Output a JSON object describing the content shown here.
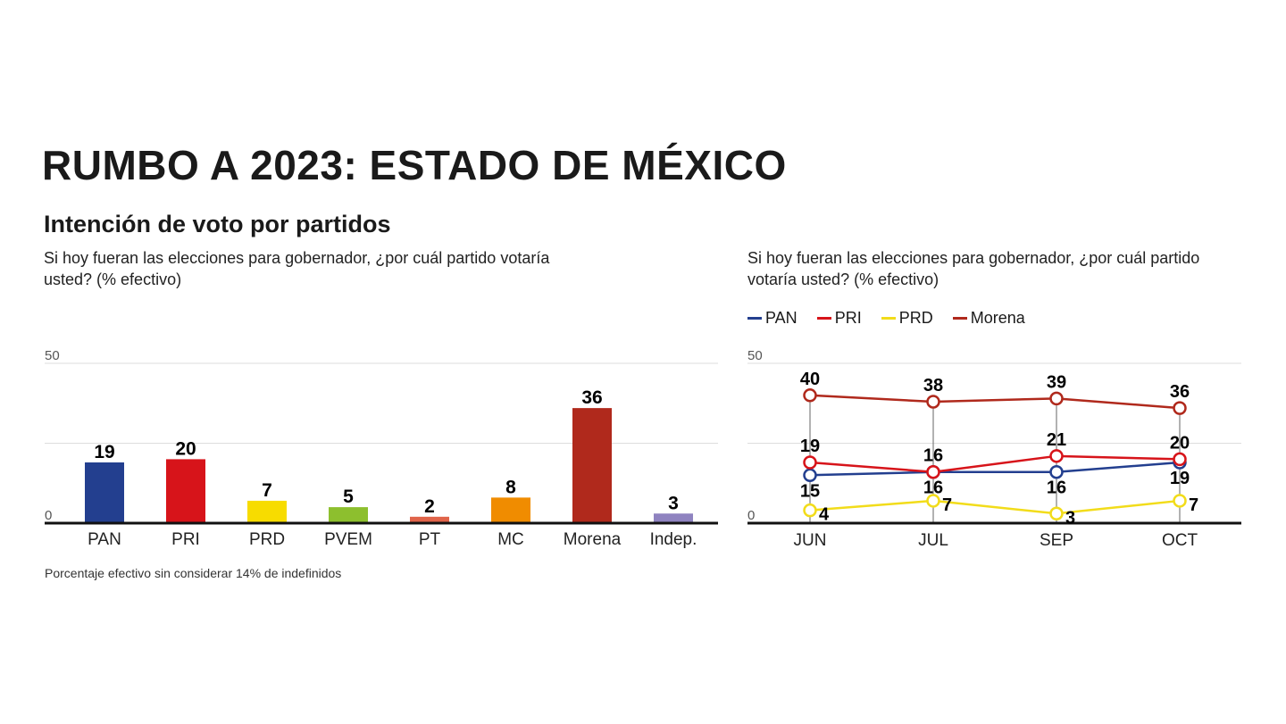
{
  "title": "RUMBO A 2023: ESTADO DE MÉXICO",
  "subtitle": "Intención de voto por partidos",
  "note": "Porcentaje efectivo sin considerar 14% de indefinidos",
  "chart_data": [
    {
      "type": "bar",
      "question": "Si hoy fueran las elecciones para gobernador, ¿por cuál partido votaría usted? (% efectivo)",
      "categories": [
        "PAN",
        "PRI",
        "PRD",
        "PVEM",
        "PT",
        "MC",
        "Morena",
        "Indep."
      ],
      "values": [
        19,
        20,
        7,
        5,
        2,
        8,
        36,
        3
      ],
      "colors": [
        "#233f8f",
        "#d7141a",
        "#f7dc00",
        "#8dbf2e",
        "#e0644a",
        "#f08c00",
        "#b0291c",
        "#8f83c0"
      ],
      "ylim": [
        0,
        50
      ],
      "yticks": [
        "0",
        "50"
      ],
      "grid": true
    },
    {
      "type": "line",
      "question": "Si hoy fueran las elecciones para gobernador, ¿por cuál partido votaría usted? (% efectivo)",
      "categories": [
        "JUN",
        "JUL",
        "SEP",
        "OCT"
      ],
      "ylim": [
        0,
        50
      ],
      "yticks": [
        "0",
        "50"
      ],
      "grid": true,
      "legend": "top-left",
      "series": [
        {
          "name": "PAN",
          "color": "#233f8f",
          "values": [
            15,
            16,
            16,
            19
          ]
        },
        {
          "name": "PRI",
          "color": "#d7141a",
          "values": [
            19,
            16,
            21,
            20
          ]
        },
        {
          "name": "PRD",
          "color": "#f2dc1a",
          "values": [
            4,
            7,
            3,
            7
          ]
        },
        {
          "name": "Morena",
          "color": "#b0291c",
          "values": [
            40,
            38,
            39,
            36
          ]
        }
      ]
    }
  ]
}
